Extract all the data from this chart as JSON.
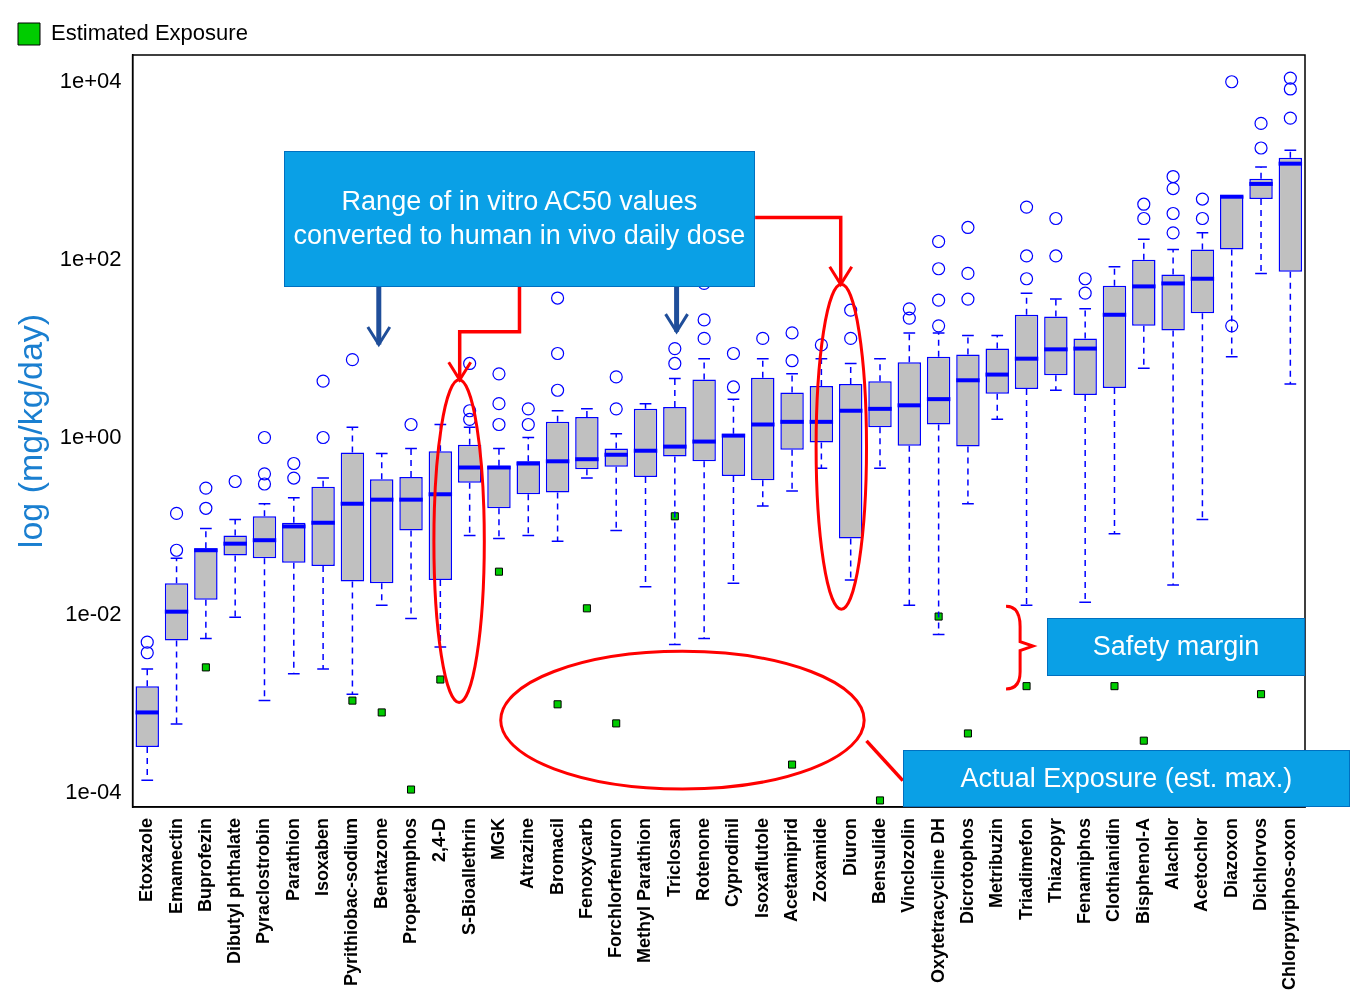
{
  "chart_data": {
    "type": "box",
    "ylabel": "log (mg/kg/day)",
    "log": "y",
    "ylim": [
      7e-05,
      20000.0
    ],
    "yticks": [
      {
        "value": 0.0001,
        "label": "1e-04"
      },
      {
        "value": 0.01,
        "label": "1e-02"
      },
      {
        "value": 1,
        "label": "1e+00"
      },
      {
        "value": 100,
        "label": "1e+02"
      },
      {
        "value": 10000,
        "label": "1e+04"
      }
    ],
    "grid": false,
    "legend": "top left",
    "categories": [
      "Etoxazole",
      "Emamectin",
      "Buprofezin",
      "Dibutyl phthalate",
      "Pyraclostrobin",
      "Parathion",
      "Isoxaben",
      "Pyrithiobac-sodium",
      "Bentazone",
      "Propetamphos",
      "2,4-D",
      "S-Bioallethrin",
      "MGK",
      "Atrazine",
      "Bromacil",
      "Fenoxycarb",
      "Forchlorfenuron",
      "Methyl Parathion",
      "Triclosan",
      "Rotenone",
      "Cyprodinil",
      "Isoxaflutole",
      "Acetamiprid",
      "Zoxamide",
      "Diuron",
      "Bensulide",
      "Vinclozolin",
      "Oxytetracycline DH",
      "Dicrotophos",
      "Metribuzin",
      "Triadimefon",
      "Thiazopyr",
      "Fenamiphos",
      "Clothianidin",
      "Bisphenol-A",
      "Alachlor",
      "Acetochlor",
      "Diazoxon",
      "Dichlorvos",
      "Chlorpyriphos-oxon"
    ],
    "series": [
      {
        "color": "#0000ff",
        "boxes": [
          {
            "low": 0.00014,
            "q1": 0.00033,
            "median": 0.00081,
            "q3": 0.0016,
            "high": 0.0025,
            "outliers": [
              0.005,
              0.0038
            ]
          },
          {
            "low": 0.0006,
            "q1": 0.0052,
            "median": 0.011,
            "q3": 0.023,
            "high": 0.044,
            "outliers": [
              0.054,
              0.14
            ]
          },
          {
            "low": 0.0055,
            "q1": 0.015,
            "median": 0.054,
            "q3": 0.057,
            "high": 0.095,
            "outliers": [
              0.27,
              0.16
            ]
          },
          {
            "low": 0.0095,
            "q1": 0.047,
            "median": 0.064,
            "q3": 0.079,
            "high": 0.12,
            "outliers": [
              0.32
            ]
          },
          {
            "low": 0.0011,
            "q1": 0.044,
            "median": 0.07,
            "q3": 0.13,
            "high": 0.18,
            "outliers": [
              1.0,
              0.39,
              0.3
            ]
          },
          {
            "low": 0.0022,
            "q1": 0.039,
            "median": 0.1,
            "q3": 0.11,
            "high": 0.21,
            "outliers": [
              0.51,
              0.35
            ]
          },
          {
            "low": 0.0025,
            "q1": 0.036,
            "median": 0.11,
            "q3": 0.28,
            "high": 0.35,
            "outliers": [
              4.3,
              1.0
            ]
          },
          {
            "low": 0.0013,
            "q1": 0.024,
            "median": 0.18,
            "q3": 0.68,
            "high": 1.3,
            "outliers": [
              7.5
            ]
          },
          {
            "low": 0.013,
            "q1": 0.023,
            "median": 0.2,
            "q3": 0.34,
            "high": 0.66
          },
          {
            "low": 0.0092,
            "q1": 0.09,
            "median": 0.2,
            "q3": 0.36,
            "high": 0.75,
            "outliers": [
              1.4
            ]
          },
          {
            "low": 0.0044,
            "q1": 0.025,
            "median": 0.23,
            "q3": 0.7,
            "high": 1.4
          },
          {
            "low": 0.079,
            "q1": 0.31,
            "median": 0.46,
            "q3": 0.83,
            "high": 1.3,
            "outliers": [
              6.8,
              2.0,
              1.6
            ]
          },
          {
            "low": 0.073,
            "q1": 0.16,
            "median": 0.46,
            "q3": 0.48,
            "high": 0.75,
            "outliers": [
              5.2,
              2.4,
              1.4
            ]
          },
          {
            "low": 0.079,
            "q1": 0.23,
            "median": 0.51,
            "q3": 0.54,
            "high": 1.0,
            "outliers": [
              2.1,
              1.4
            ]
          },
          {
            "low": 0.068,
            "q1": 0.24,
            "median": 0.54,
            "q3": 1.5,
            "high": 2.0,
            "outliers": [
              37,
              8.8,
              3.4
            ]
          },
          {
            "low": 0.35,
            "q1": 0.44,
            "median": 0.57,
            "q3": 1.7,
            "high": 2.1
          },
          {
            "low": 0.09,
            "q1": 0.47,
            "median": 0.64,
            "q3": 0.75,
            "high": 1.1,
            "outliers": [
              4.8,
              2.1
            ]
          },
          {
            "low": 0.021,
            "q1": 0.36,
            "median": 0.71,
            "q3": 2.1,
            "high": 2.4
          },
          {
            "low": 0.0047,
            "q1": 0.61,
            "median": 0.79,
            "q3": 2.2,
            "high": 4.6,
            "outliers": [
              10,
              6.8
            ]
          },
          {
            "low": 0.0055,
            "q1": 0.54,
            "median": 0.9,
            "q3": 4.5,
            "high": 7.7,
            "outliers": [
              54,
              21,
              13
            ]
          },
          {
            "low": 0.023,
            "q1": 0.37,
            "median": 1.05,
            "q3": 1.1,
            "high": 2.7,
            "outliers": [
              8.8,
              3.7
            ]
          },
          {
            "low": 0.17,
            "q1": 0.33,
            "median": 1.4,
            "q3": 4.7,
            "high": 7.7,
            "outliers": [
              13
            ]
          },
          {
            "low": 0.25,
            "q1": 0.73,
            "median": 1.5,
            "q3": 3.2,
            "high": 5.2,
            "outliers": [
              15,
              7.3
            ]
          },
          {
            "low": 0.45,
            "q1": 0.88,
            "median": 1.5,
            "q3": 3.8,
            "high": 7.7,
            "outliers": [
              11
            ]
          },
          {
            "low": 0.025,
            "q1": 0.073,
            "median": 2.0,
            "q3": 4.0,
            "high": 6.8,
            "outliers": [
              27,
              13
            ]
          },
          {
            "low": 0.45,
            "q1": 1.3,
            "median": 2.1,
            "q3": 4.3,
            "high": 7.7
          },
          {
            "low": 0.013,
            "q1": 0.81,
            "median": 2.3,
            "q3": 7.0,
            "high": 15,
            "outliers": [
              28,
              22
            ]
          },
          {
            "low": 0.0061,
            "q1": 1.4,
            "median": 2.7,
            "q3": 8.1,
            "high": 15,
            "outliers": [
              160,
              79,
              35,
              18
            ]
          },
          {
            "low": 0.18,
            "q1": 0.79,
            "median": 4.4,
            "q3": 8.6,
            "high": 14,
            "outliers": [
              230,
              70,
              36
            ]
          },
          {
            "low": 1.6,
            "q1": 3.1,
            "median": 5.1,
            "q3": 10,
            "high": 14
          },
          {
            "low": 0.013,
            "q1": 3.5,
            "median": 7.7,
            "q3": 24,
            "high": 42,
            "outliers": [
              390,
              110,
              61
            ]
          },
          {
            "low": 3.4,
            "q1": 5.0,
            "median": 9.8,
            "q3": 23,
            "high": 36,
            "outliers": [
              290,
              110
            ]
          },
          {
            "low": 0.014,
            "q1": 3.0,
            "median": 10,
            "q3": 13,
            "high": 28,
            "outliers": [
              61,
              42
            ]
          },
          {
            "low": 0.083,
            "q1": 3.6,
            "median": 24,
            "q3": 51,
            "high": 83
          },
          {
            "low": 6.0,
            "q1": 18,
            "median": 50,
            "q3": 100,
            "high": 170,
            "outliers": [
              420,
              290
            ]
          },
          {
            "low": 0.022,
            "q1": 16,
            "median": 54,
            "q3": 68,
            "high": 130,
            "outliers": [
              860,
              630,
              330,
              200
            ]
          },
          {
            "low": 0.12,
            "q1": 25,
            "median": 61,
            "q3": 130,
            "high": 200,
            "outliers": [
              480,
              290
            ]
          },
          {
            "low": 8.1,
            "q1": 130,
            "median": 510,
            "q3": 520,
            "high": 520,
            "outliers": [
              10000,
              18
            ]
          },
          {
            "low": 70,
            "q1": 480,
            "median": 710,
            "q3": 810,
            "high": 1100,
            "outliers": [
              3400,
              1800
            ]
          },
          {
            "low": 4.0,
            "q1": 73,
            "median": 1200,
            "q3": 1400,
            "high": 1700,
            "outliers": [
              11000,
              8300,
              3900
            ]
          }
        ]
      },
      {
        "type": "scatter",
        "name": "Estimated Exposure",
        "color": "#00cc00",
        "marker": "square",
        "x": [
          "Buprofezin",
          "Pyrithiobac-sodium",
          "Bentazone",
          "Propetamphos",
          "2,4-D",
          "MGK",
          "Bromacil",
          "Fenoxycarb",
          "Forchlorfenuron",
          "Triclosan",
          "Acetamiprid",
          "Bensulide",
          "Oxytetracycline DH",
          "Dicrotophos",
          "Triadimefon",
          "Clothianidin",
          "Bisphenol-A",
          "Dichlorvos"
        ],
        "values": [
          0.0026,
          0.0011,
          0.00081,
          0.00011,
          0.0019,
          0.031,
          0.001,
          0.012,
          0.00061,
          0.13,
          0.00021,
          8.3e-05,
          0.0097,
          0.00047,
          0.0016,
          0.0016,
          0.00039,
          0.0013
        ]
      }
    ],
    "annotations": [
      "Range of in vitro AC50 values converted to human in vivo daily dose",
      "Safety margin",
      "Actual Exposure (est. max.)"
    ]
  }
}
